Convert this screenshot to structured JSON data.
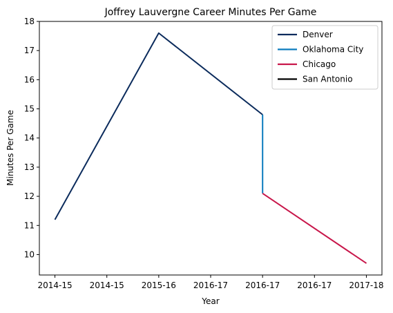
{
  "chart_data": {
    "type": "line",
    "title": "Joffrey Lauvergne Career Minutes Per Game",
    "xlabel": "Year",
    "ylabel": "Minutes Per Game",
    "x_ticks": [
      "2014-15",
      "2014-15",
      "2015-16",
      "2016-17",
      "2016-17",
      "2016-17",
      "2017-18"
    ],
    "x_range": [
      -0.15,
      3.15
    ],
    "ylim": [
      9.3,
      18.0
    ],
    "y_ticks": [
      10,
      11,
      12,
      13,
      14,
      15,
      16,
      17,
      18
    ],
    "grid": false,
    "legend_position": "top-right",
    "series": [
      {
        "name": "Denver",
        "color": "#0b2b5c",
        "points": [
          [
            0,
            11.2
          ],
          [
            1,
            17.6
          ],
          [
            2,
            14.8
          ]
        ]
      },
      {
        "name": "Oklahoma City",
        "color": "#0a7bbd",
        "points": [
          [
            2,
            14.8
          ],
          [
            2,
            12.1
          ]
        ]
      },
      {
        "name": "Chicago",
        "color": "#c8164a",
        "points": [
          [
            2,
            12.1
          ],
          [
            3,
            9.7
          ]
        ]
      },
      {
        "name": "San Antonio",
        "color": "#000000",
        "points": []
      }
    ]
  }
}
